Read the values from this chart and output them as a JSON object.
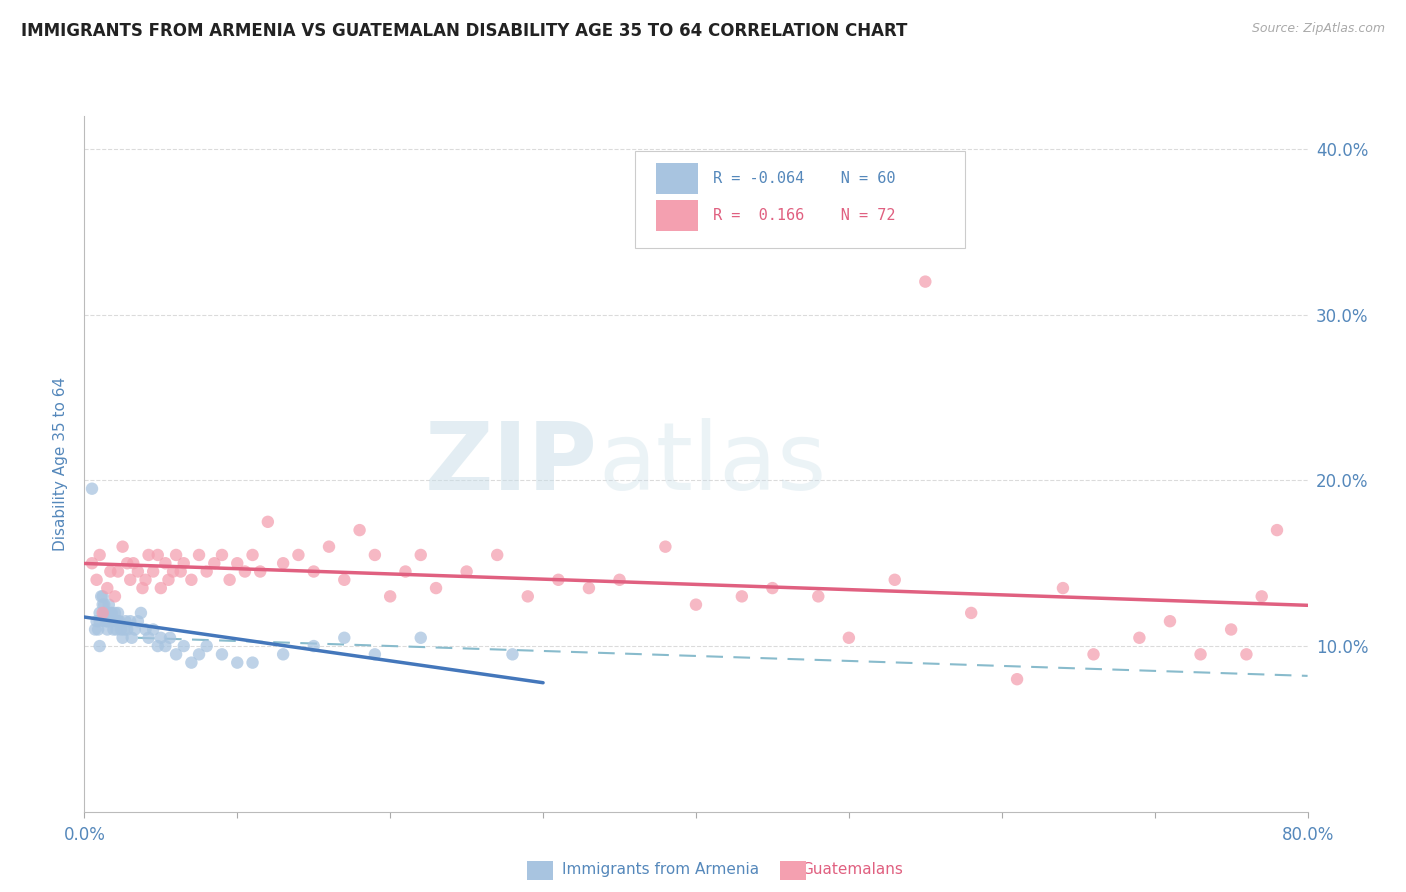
{
  "title": "IMMIGRANTS FROM ARMENIA VS GUATEMALAN DISABILITY AGE 35 TO 64 CORRELATION CHART",
  "source": "Source: ZipAtlas.com",
  "ylabel": "Disability Age 35 to 64",
  "legend_label1": "Immigrants from Armenia",
  "legend_label2": "Guatemalans",
  "r1": "-0.064",
  "n1": "60",
  "r2": "0.166",
  "n2": "72",
  "xmin": 0.0,
  "xmax": 0.8,
  "ymin": 0.0,
  "ymax": 0.42,
  "yticks": [
    0.1,
    0.2,
    0.3,
    0.4
  ],
  "ytick_labels": [
    "10.0%",
    "20.0%",
    "30.0%",
    "40.0%"
  ],
  "color_armenia": "#a8c4e0",
  "color_guatemala": "#f4a0b0",
  "color_armenia_line": "#4477bb",
  "color_guatemala_line": "#e06080",
  "color_dashed": "#88bbcc",
  "scatter_alpha": 0.75,
  "scatter_size": 80,
  "background_color": "#ffffff",
  "title_color": "#333333",
  "axis_color": "#5588bb",
  "grid_color": "#cccccc",
  "armenia_x": [
    0.005,
    0.007,
    0.008,
    0.009,
    0.01,
    0.01,
    0.01,
    0.011,
    0.012,
    0.012,
    0.013,
    0.013,
    0.014,
    0.014,
    0.015,
    0.015,
    0.015,
    0.016,
    0.016,
    0.017,
    0.018,
    0.018,
    0.019,
    0.02,
    0.02,
    0.021,
    0.022,
    0.022,
    0.023,
    0.024,
    0.025,
    0.026,
    0.027,
    0.028,
    0.03,
    0.031,
    0.033,
    0.035,
    0.037,
    0.04,
    0.042,
    0.045,
    0.048,
    0.05,
    0.053,
    0.056,
    0.06,
    0.065,
    0.07,
    0.075,
    0.08,
    0.09,
    0.1,
    0.11,
    0.13,
    0.15,
    0.17,
    0.19,
    0.22,
    0.28
  ],
  "armenia_y": [
    0.195,
    0.11,
    0.115,
    0.11,
    0.1,
    0.115,
    0.12,
    0.13,
    0.125,
    0.13,
    0.12,
    0.125,
    0.115,
    0.12,
    0.11,
    0.115,
    0.12,
    0.125,
    0.115,
    0.12,
    0.115,
    0.12,
    0.11,
    0.115,
    0.12,
    0.11,
    0.115,
    0.12,
    0.115,
    0.11,
    0.105,
    0.11,
    0.115,
    0.11,
    0.115,
    0.105,
    0.11,
    0.115,
    0.12,
    0.11,
    0.105,
    0.11,
    0.1,
    0.105,
    0.1,
    0.105,
    0.095,
    0.1,
    0.09,
    0.095,
    0.1,
    0.095,
    0.09,
    0.09,
    0.095,
    0.1,
    0.105,
    0.095,
    0.105,
    0.095
  ],
  "guatemala_x": [
    0.005,
    0.008,
    0.01,
    0.012,
    0.015,
    0.017,
    0.02,
    0.022,
    0.025,
    0.028,
    0.03,
    0.032,
    0.035,
    0.038,
    0.04,
    0.042,
    0.045,
    0.048,
    0.05,
    0.053,
    0.055,
    0.058,
    0.06,
    0.063,
    0.065,
    0.07,
    0.075,
    0.08,
    0.085,
    0.09,
    0.095,
    0.1,
    0.105,
    0.11,
    0.115,
    0.12,
    0.13,
    0.14,
    0.15,
    0.16,
    0.17,
    0.18,
    0.19,
    0.2,
    0.21,
    0.22,
    0.23,
    0.25,
    0.27,
    0.29,
    0.31,
    0.33,
    0.35,
    0.38,
    0.4,
    0.43,
    0.45,
    0.48,
    0.5,
    0.53,
    0.55,
    0.58,
    0.61,
    0.64,
    0.66,
    0.69,
    0.71,
    0.73,
    0.75,
    0.76,
    0.77,
    0.78
  ],
  "guatemala_y": [
    0.15,
    0.14,
    0.155,
    0.12,
    0.135,
    0.145,
    0.13,
    0.145,
    0.16,
    0.15,
    0.14,
    0.15,
    0.145,
    0.135,
    0.14,
    0.155,
    0.145,
    0.155,
    0.135,
    0.15,
    0.14,
    0.145,
    0.155,
    0.145,
    0.15,
    0.14,
    0.155,
    0.145,
    0.15,
    0.155,
    0.14,
    0.15,
    0.145,
    0.155,
    0.145,
    0.175,
    0.15,
    0.155,
    0.145,
    0.16,
    0.14,
    0.17,
    0.155,
    0.13,
    0.145,
    0.155,
    0.135,
    0.145,
    0.155,
    0.13,
    0.14,
    0.135,
    0.14,
    0.16,
    0.125,
    0.13,
    0.135,
    0.13,
    0.105,
    0.14,
    0.32,
    0.12,
    0.08,
    0.135,
    0.095,
    0.105,
    0.115,
    0.095,
    0.11,
    0.095,
    0.13,
    0.17
  ],
  "watermark_zip": "ZIP",
  "watermark_atlas": "atlas"
}
